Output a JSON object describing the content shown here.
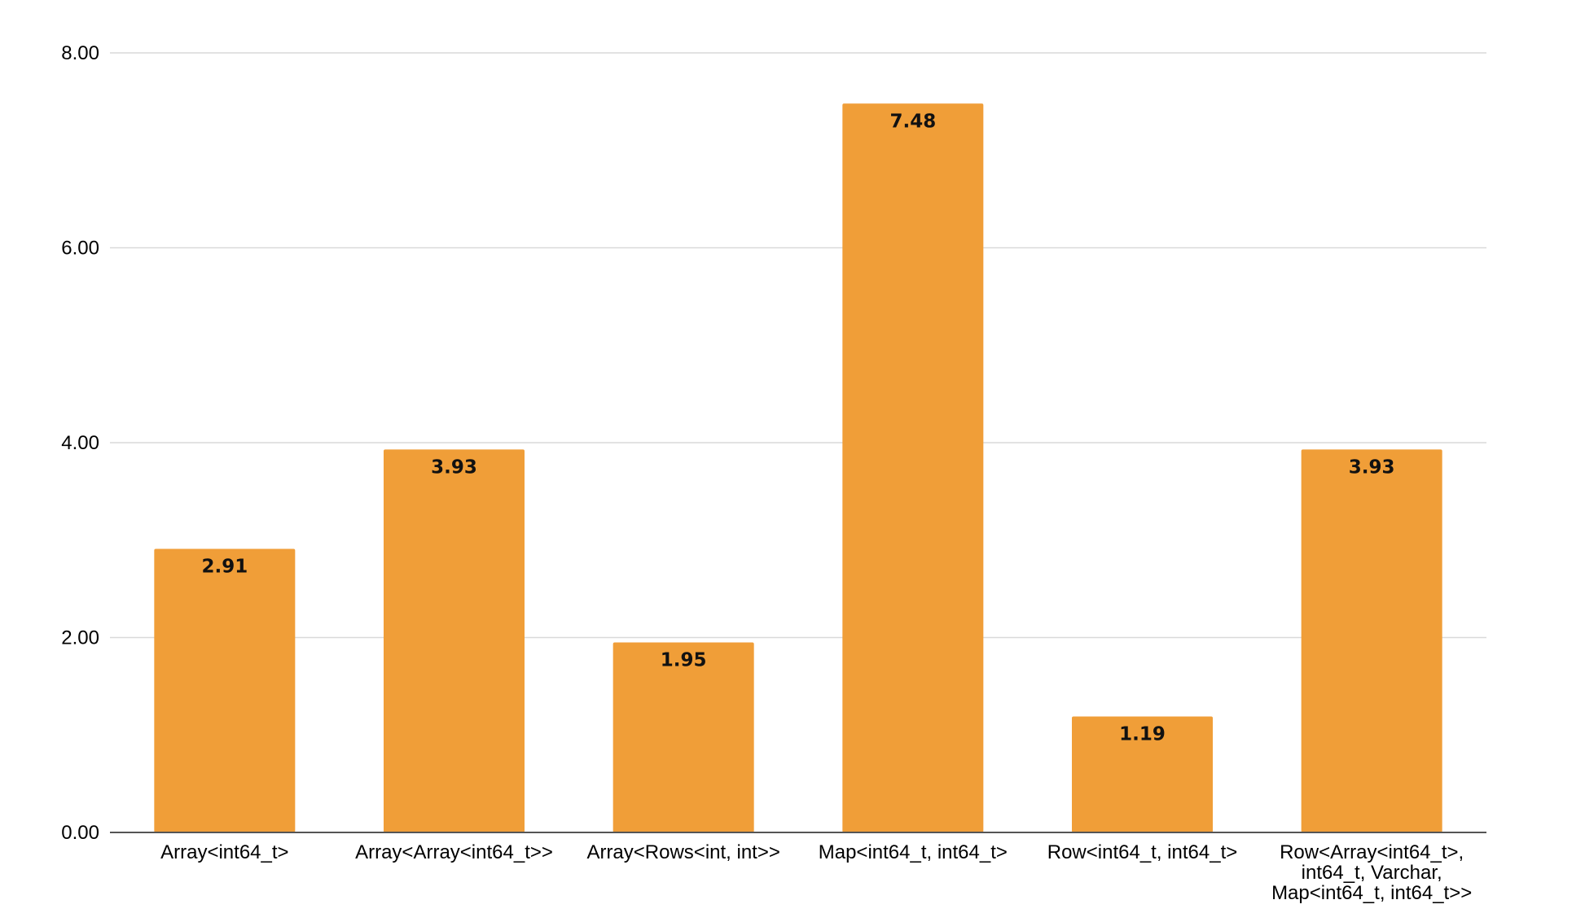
{
  "chart_data": {
    "type": "bar",
    "title": "",
    "xlabel": "",
    "ylabel": "",
    "categories": [
      [
        "Array<int64_t>"
      ],
      [
        "Array<Array<int64_t>>"
      ],
      [
        "Array<Rows<int, int>>"
      ],
      [
        "Map<int64_t, int64_t>"
      ],
      [
        "Row<int64_t, int64_t>"
      ],
      [
        "Row<Array<int64_t>,",
        "int64_t, Varchar,",
        "Map<int64_t, int64_t>>"
      ]
    ],
    "values": [
      2.91,
      3.93,
      1.95,
      7.48,
      1.19,
      3.93
    ],
    "data_labels": [
      "2.91",
      "3.93",
      "1.95",
      "7.48",
      "1.19",
      "3.93"
    ],
    "ylim": [
      0,
      8
    ],
    "yticks": [
      0,
      2,
      4,
      6,
      8
    ],
    "ytick_labels": [
      "0.00",
      "2.00",
      "4.00",
      "6.00",
      "8.00"
    ],
    "grid": true,
    "legend": "none",
    "colors": {
      "bar": "#f09e38",
      "grid": "#d9d9d9",
      "axis": "#555555"
    }
  }
}
